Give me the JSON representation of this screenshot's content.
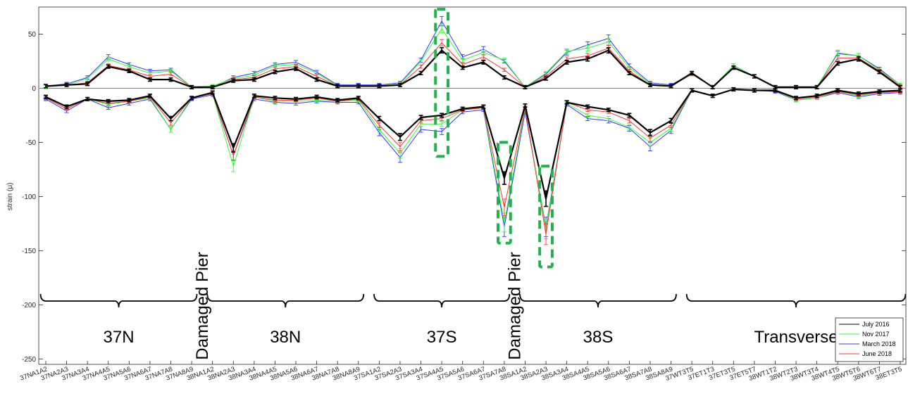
{
  "chart_data": {
    "type": "line",
    "title": "",
    "ylabel": "strain (μ)",
    "xlabel": "",
    "ylim": [
      -255,
      75
    ],
    "yticks": [
      50,
      0,
      -50,
      -100,
      -150,
      -200,
      -250
    ],
    "ytick_labels": [
      "50",
      "0",
      "-50",
      "-100",
      "-150",
      "-200",
      "-250"
    ],
    "grid": false,
    "legend_position": "bottom-right",
    "categories": [
      "37NA1A2",
      "37NA2A3",
      "37NA3A4",
      "37NA4A5",
      "37NA5A6",
      "37NA6A7",
      "37NA7A8",
      "37NA8A9",
      "38NA1A2",
      "38NA2A3",
      "38NA3A4",
      "38NA4A5",
      "38NA5A6",
      "38NA6A7",
      "38NA7A8",
      "38NA8A9",
      "37SA1A2",
      "37SA2A3",
      "37SA3A4",
      "37SA4A5",
      "37SA5A6",
      "37SA6A7",
      "37SA7A8",
      "38SA1A2",
      "38SA2A3",
      "38SA3A4",
      "38SA4A5",
      "38SA5A6",
      "38SA6A7",
      "38SA7A8",
      "38SA8A9",
      "37WT3T5",
      "37ET1T3",
      "37ET3T5",
      "37ET5T7",
      "38WT1T2",
      "38WT2T3",
      "38WT3T4",
      "38WT4T5",
      "38WT5T6",
      "38WT6T7",
      "38ET3T5"
    ],
    "series": [
      {
        "name": "July 2016",
        "color": "#000000",
        "upper": [
          2,
          3,
          4,
          20,
          16,
          8,
          8,
          1,
          1,
          7,
          8,
          15,
          18,
          8,
          2,
          2,
          2,
          3,
          14,
          35,
          19,
          24,
          10,
          1,
          9,
          24,
          27,
          35,
          14,
          3,
          2,
          14,
          1,
          19,
          11,
          1,
          1,
          1,
          23,
          27,
          15,
          1
        ],
        "lower": [
          -8,
          -17,
          -10,
          -12,
          -11,
          -7,
          -28,
          -9,
          -4,
          -55,
          -7,
          -9,
          -10,
          -8,
          -11,
          -9,
          -28,
          -45,
          -27,
          -25,
          -19,
          -17,
          -83,
          -16,
          -102,
          -13,
          -17,
          -20,
          -25,
          -41,
          -30,
          -2,
          -7,
          -1,
          -2,
          -2,
          -9,
          -7,
          -2,
          -5,
          -3,
          -2
        ]
      },
      {
        "name": "Nov 2017",
        "color": "#33ff33",
        "upper": [
          1,
          3,
          9,
          27,
          20,
          14,
          16,
          1,
          2,
          9,
          12,
          21,
          22,
          14,
          2,
          2,
          2,
          4,
          25,
          55,
          26,
          33,
          26,
          1,
          14,
          34,
          37,
          43,
          19,
          4,
          2,
          13,
          1,
          21,
          11,
          1,
          1,
          1,
          33,
          30,
          17,
          3
        ],
        "lower": [
          -9,
          -19,
          -10,
          -15,
          -12,
          -9,
          -38,
          -9,
          -5,
          -72,
          -8,
          -12,
          -12,
          -11,
          -12,
          -11,
          -38,
          -60,
          -33,
          -33,
          -20,
          -18,
          -124,
          -19,
          -130,
          -14,
          -25,
          -28,
          -36,
          -50,
          -37,
          -2,
          -7,
          -1,
          -2,
          -2,
          -11,
          -9,
          -3,
          -7,
          -4,
          -3
        ]
      },
      {
        "name": "March 2018",
        "color": "#3333ff",
        "upper": [
          2,
          4,
          10,
          29,
          22,
          16,
          17,
          1,
          1,
          10,
          14,
          22,
          24,
          15,
          3,
          3,
          3,
          5,
          26,
          62,
          29,
          36,
          25,
          1,
          13,
          33,
          40,
          46,
          21,
          5,
          3,
          14,
          1,
          21,
          11,
          1,
          1,
          1,
          32,
          30,
          18,
          3
        ],
        "lower": [
          -10,
          -21,
          -10,
          -18,
          -14,
          -10,
          -38,
          -10,
          -6,
          -62,
          -10,
          -13,
          -14,
          -12,
          -13,
          -13,
          -41,
          -64,
          -38,
          -40,
          -22,
          -20,
          -128,
          -22,
          -128,
          -15,
          -28,
          -30,
          -37,
          -54,
          -39,
          -2,
          -7,
          -1,
          -2,
          -3,
          -11,
          -9,
          -4,
          -8,
          -5,
          -4
        ]
      },
      {
        "name": "June 2018",
        "color": "#ff3333",
        "upper": [
          2,
          3,
          5,
          21,
          17,
          11,
          13,
          1,
          1,
          8,
          10,
          18,
          20,
          11,
          2,
          2,
          2,
          3,
          20,
          42,
          22,
          29,
          17,
          1,
          11,
          27,
          30,
          37,
          16,
          3,
          2,
          13,
          1,
          19,
          11,
          1,
          1,
          1,
          28,
          28,
          16,
          2
        ],
        "lower": [
          -9,
          -19,
          -10,
          -14,
          -12,
          -8,
          -32,
          -9,
          -5,
          -62,
          -8,
          -11,
          -11,
          -9,
          -12,
          -10,
          -34,
          -54,
          -30,
          -28,
          -20,
          -18,
          -110,
          -18,
          -135,
          -13,
          -20,
          -22,
          -30,
          -46,
          -34,
          -2,
          -7,
          -1,
          -2,
          -2,
          -10,
          -8,
          -3,
          -6,
          -4,
          -3
        ]
      }
    ],
    "group_labels": [
      {
        "label": "37N",
        "from": 0,
        "to": 7
      },
      {
        "label": "Damaged Pier",
        "at": 7.5,
        "vertical": true
      },
      {
        "label": "38N",
        "from": 8,
        "to": 15
      },
      {
        "label": "37S",
        "from": 16,
        "to": 22
      },
      {
        "label": "Damaged Pier",
        "at": 22.5,
        "vertical": true
      },
      {
        "label": "38S",
        "from": 23,
        "to": 30
      },
      {
        "label": "Transverse",
        "from": 31,
        "to": 41
      }
    ],
    "highlight_boxes": [
      {
        "x_from": 18.7,
        "x_to": 19.3,
        "y_from": 73,
        "y_to": -63
      },
      {
        "x_from": 21.7,
        "x_to": 22.3,
        "y_from": -50,
        "y_to": -143
      },
      {
        "x_from": 23.7,
        "x_to": 24.3,
        "y_from": -72,
        "y_to": -165
      }
    ]
  }
}
